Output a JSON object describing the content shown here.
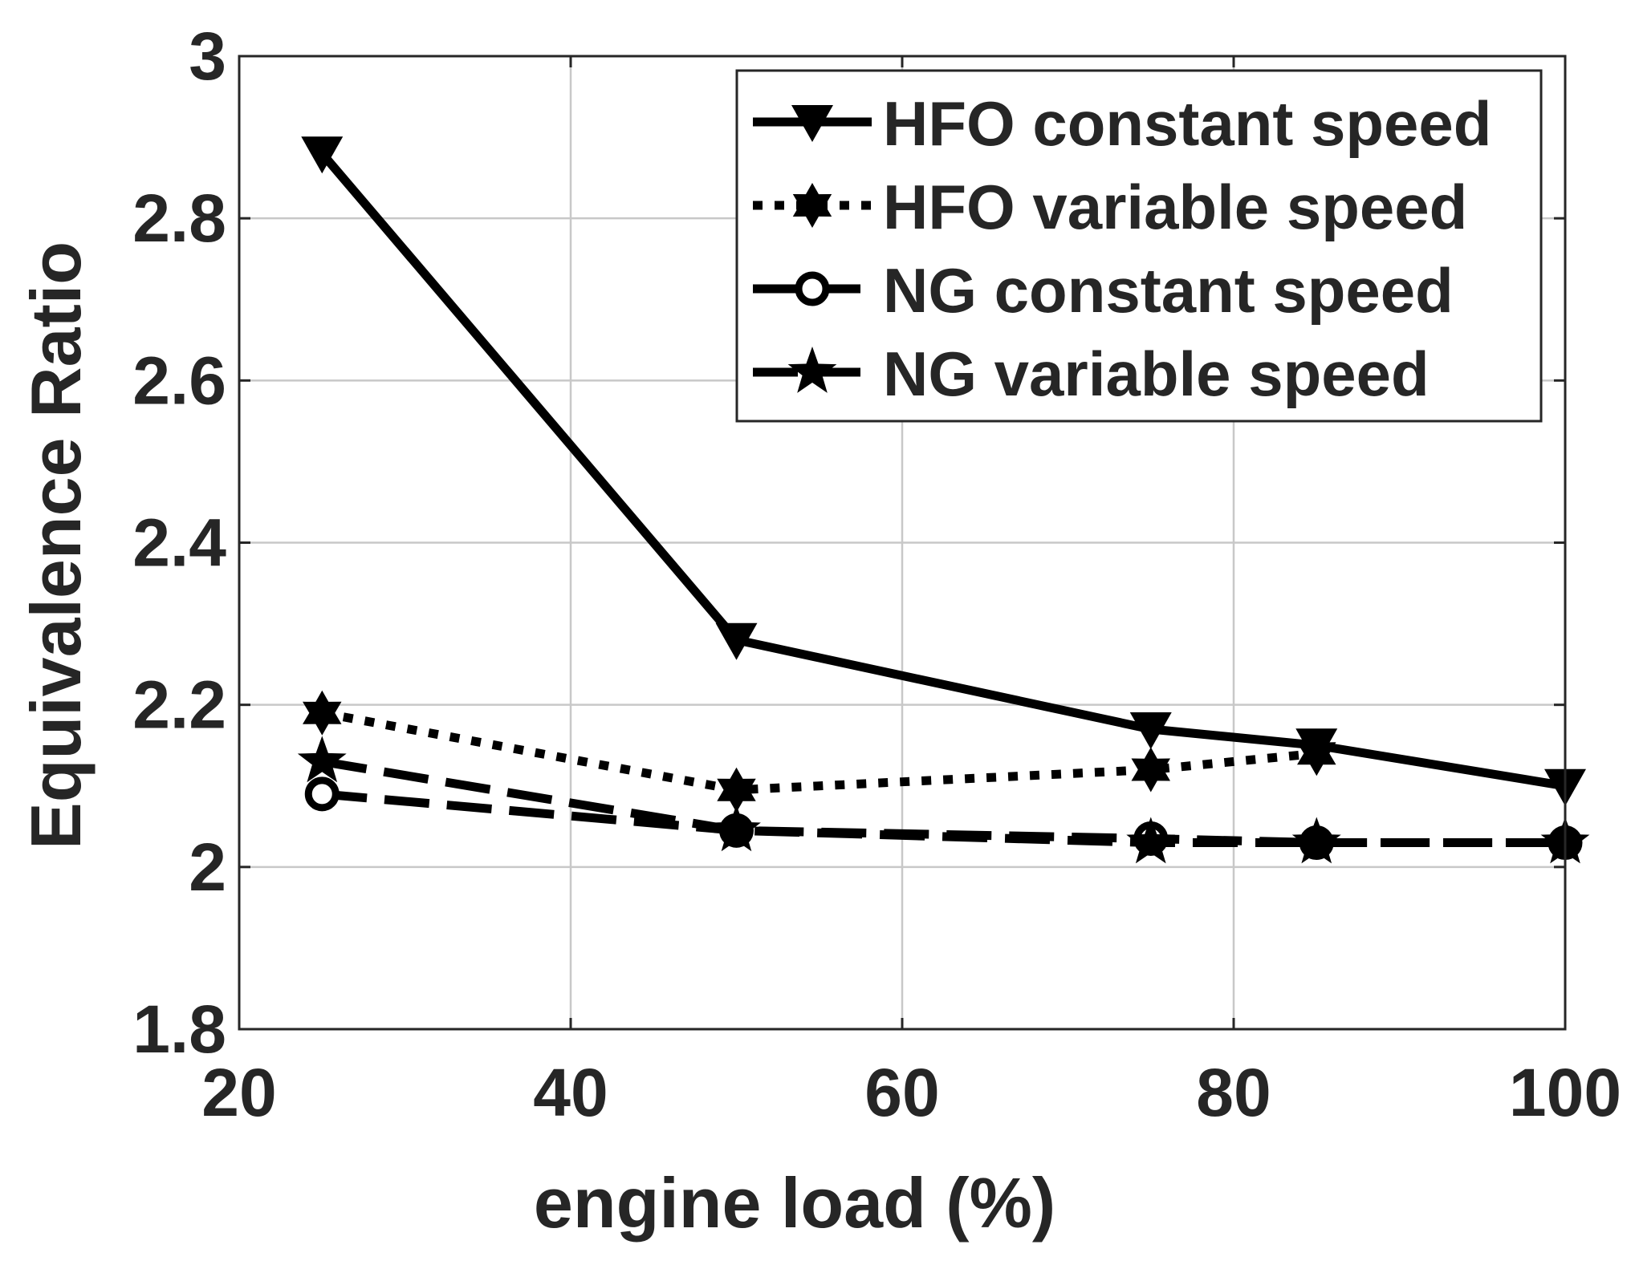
{
  "chart_data": {
    "type": "line",
    "title": "",
    "xlabel": "engine load (%)",
    "ylabel": "Equivalence Ratio",
    "xlim": [
      20,
      100
    ],
    "ylim": [
      1.8,
      3.0
    ],
    "xticks": [
      20,
      40,
      60,
      80,
      100
    ],
    "yticks": [
      1.8,
      2.0,
      2.2,
      2.4,
      2.6,
      2.8,
      3.0
    ],
    "xtick_labels": [
      "20",
      "40",
      "60",
      "80",
      "100"
    ],
    "ytick_labels": [
      "1.8",
      "2",
      "2.2",
      "2.4",
      "2.6",
      "2.8",
      "3"
    ],
    "grid": true,
    "legend_position": "top-right",
    "series": [
      {
        "name": "HFO constant speed",
        "line": "solid",
        "marker": "triangle-down",
        "x": [
          25,
          50,
          75,
          85,
          100
        ],
        "y": [
          2.88,
          2.28,
          2.17,
          2.15,
          2.1
        ]
      },
      {
        "name": "HFO variable speed",
        "line": "dotted",
        "marker": "hexagram",
        "x": [
          25,
          50,
          75,
          85
        ],
        "y": [
          2.19,
          2.095,
          2.12,
          2.14
        ]
      },
      {
        "name": "NG constant speed",
        "line": "dashed",
        "marker": "circle",
        "x": [
          25,
          50,
          75,
          85,
          100
        ],
        "y": [
          2.09,
          2.045,
          2.035,
          2.03,
          2.03
        ]
      },
      {
        "name": "NG variable speed",
        "line": "dashed",
        "marker": "star",
        "x": [
          25,
          50,
          75,
          85,
          100
        ],
        "y": [
          2.13,
          2.045,
          2.03,
          2.03,
          2.03
        ]
      }
    ]
  }
}
